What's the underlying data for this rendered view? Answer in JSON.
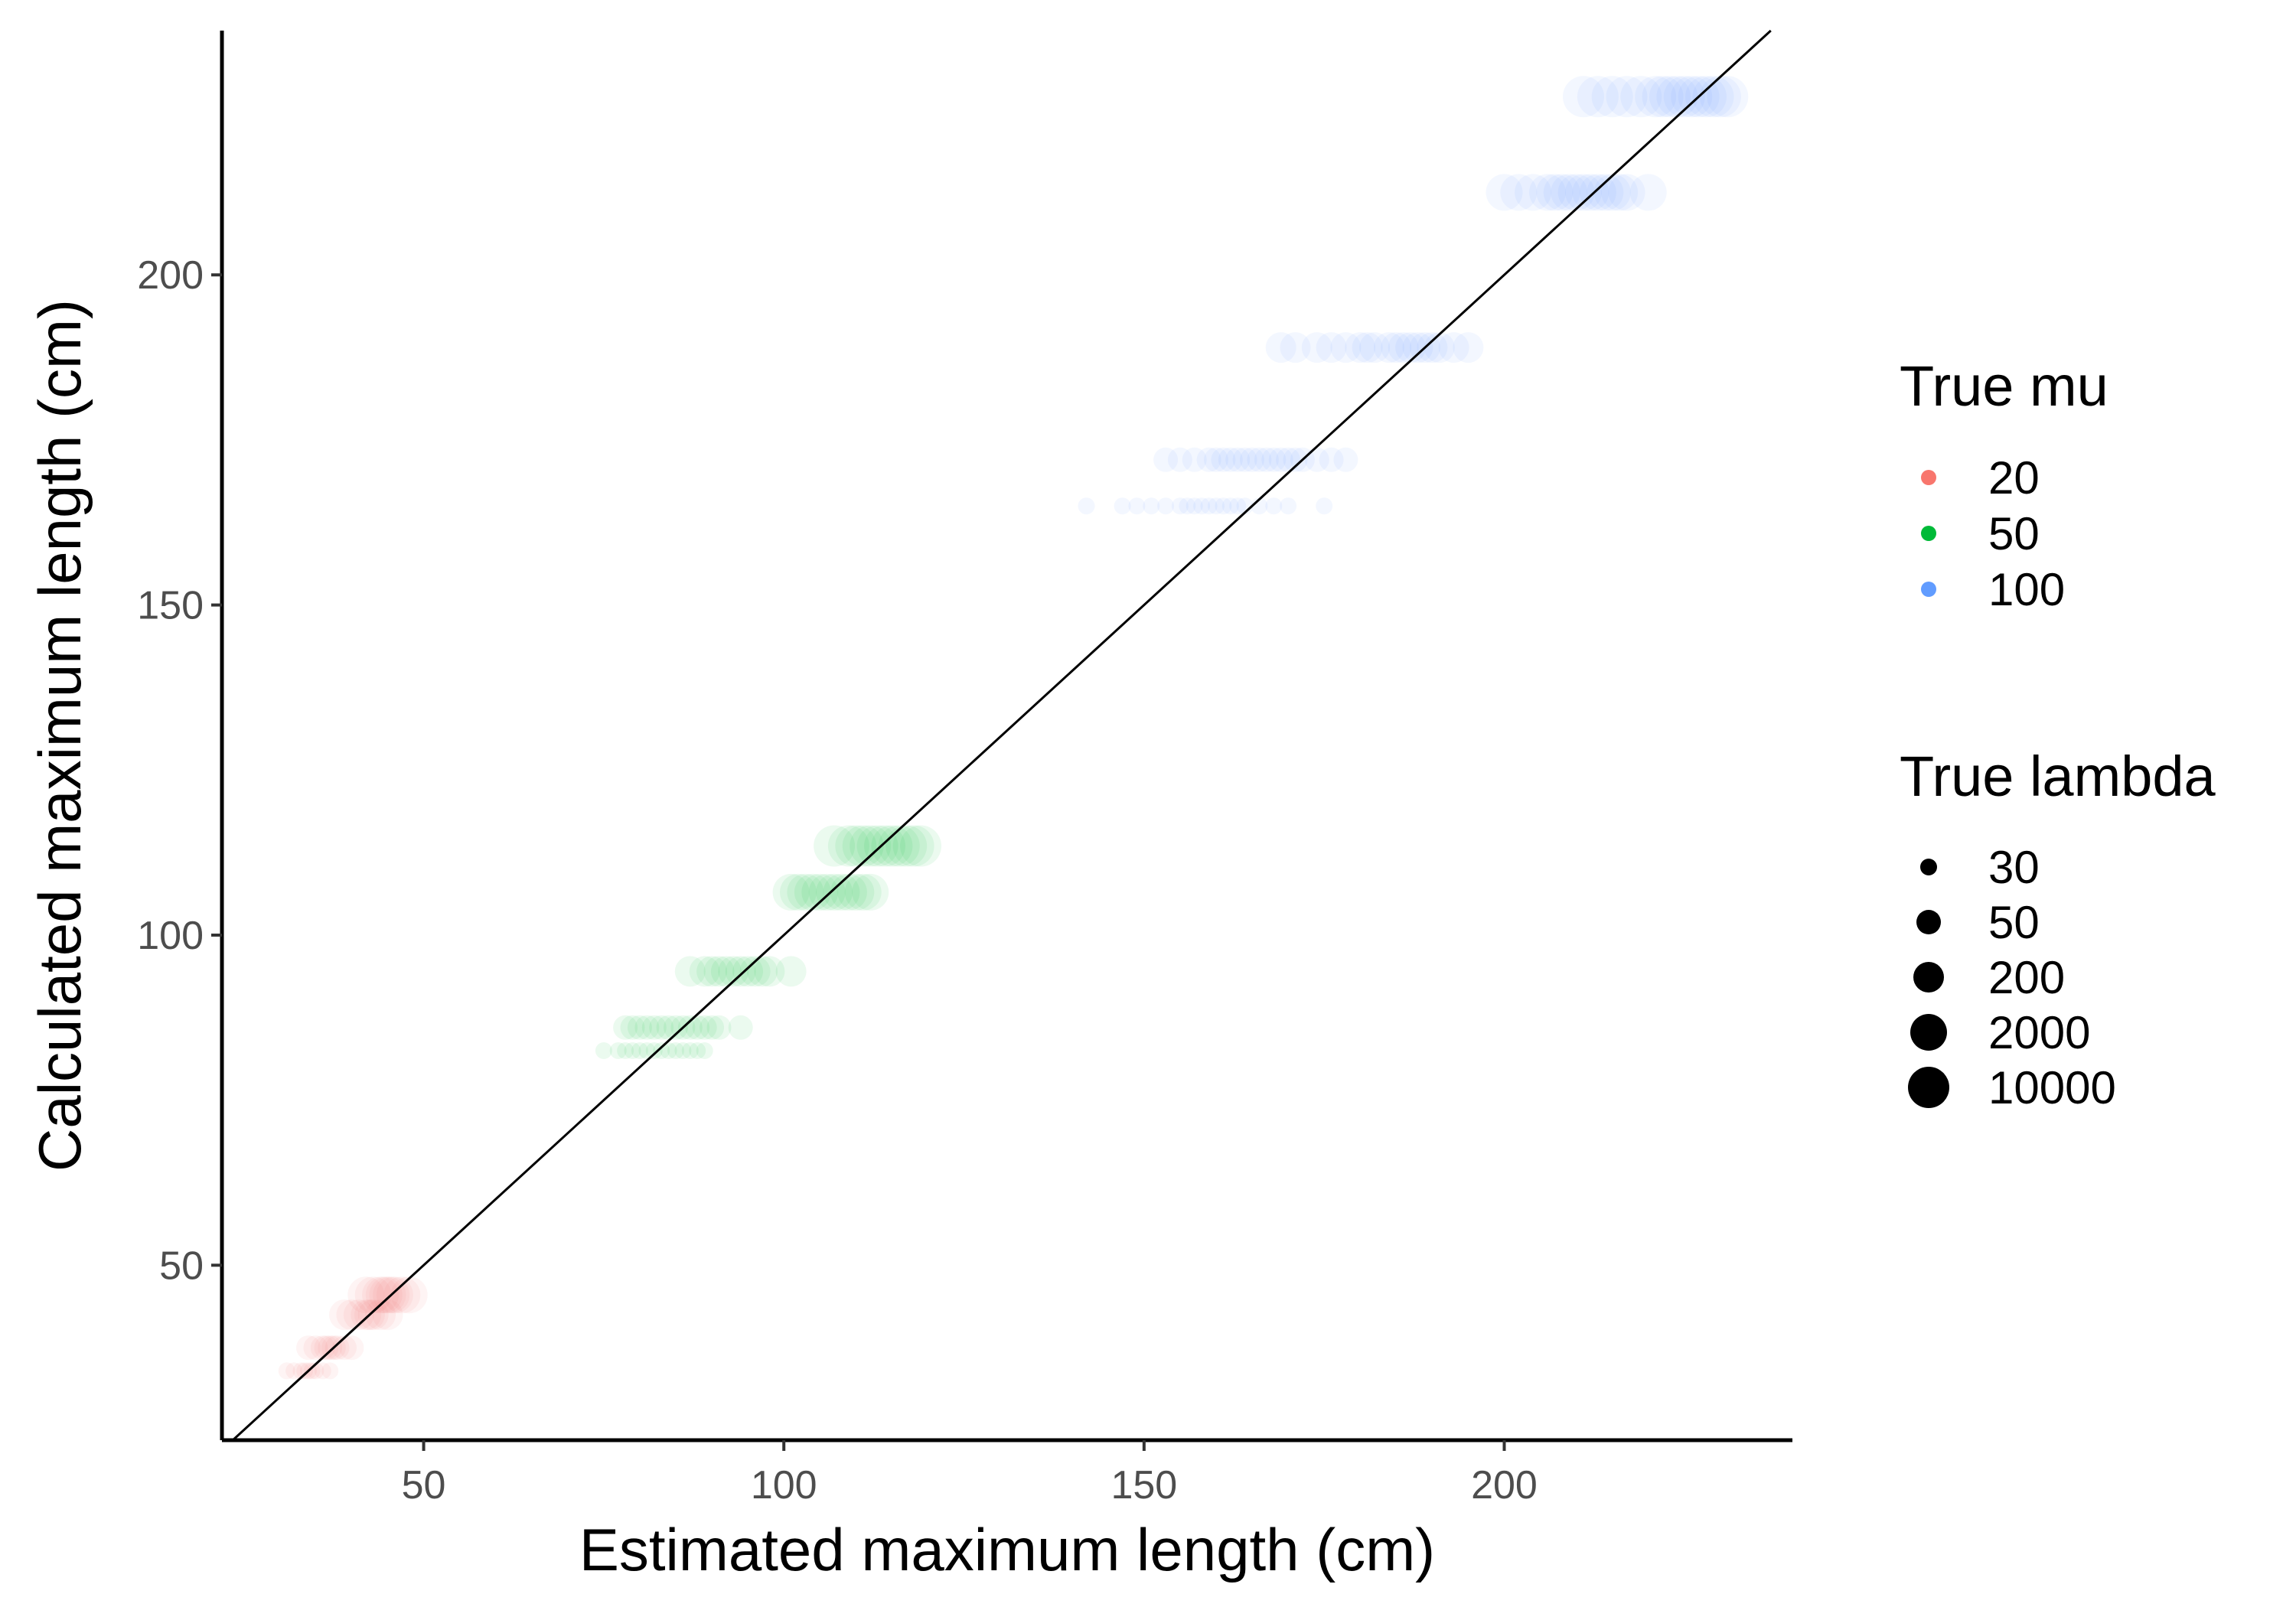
{
  "chart_data": {
    "type": "scatter",
    "title": "",
    "xlabel": "Estimated maximum length (cm)",
    "ylabel": "Calculated maximum length (cm)",
    "xlim": [
      22,
      240
    ],
    "ylim": [
      23.5,
      237
    ],
    "x_ticks": [
      50,
      100,
      150,
      200
    ],
    "y_ticks": [
      50,
      100,
      150,
      200
    ],
    "x_tick_labels": [
      "50",
      "100",
      "150",
      "200"
    ],
    "y_tick_labels": [
      "50",
      "100",
      "150",
      "200"
    ],
    "grid": false,
    "reference_line": {
      "type": "identity",
      "slope": 1,
      "intercept": 0,
      "color": "#000000"
    },
    "point_opacity": 0.08,
    "color_legend": {
      "title": "True mu",
      "position": "right",
      "entries": [
        {
          "label": "20",
          "color": "#F8766D"
        },
        {
          "label": "50",
          "color": "#00BA38"
        },
        {
          "label": "100",
          "color": "#619CFF"
        }
      ]
    },
    "size_legend": {
      "title": "True lambda",
      "position": "right",
      "entries": [
        {
          "label": "30",
          "size": 1
        },
        {
          "label": "50",
          "size": 2
        },
        {
          "label": "200",
          "size": 3
        },
        {
          "label": "2000",
          "size": 4
        },
        {
          "label": "10000",
          "size": 5
        }
      ]
    },
    "series": [
      {
        "mu": "20",
        "color": "#F8766D",
        "rows": [
          {
            "y": 34,
            "lambda": "30",
            "x": [
              31,
              32,
              33,
              33.5,
              34,
              34.5,
              35,
              36,
              37
            ]
          },
          {
            "y": 37.5,
            "lambda": "50",
            "x": [
              34,
              35,
              36,
              36.5,
              37,
              37.5,
              38,
              39,
              40
            ]
          },
          {
            "y": 42.5,
            "lambda": "200",
            "x": [
              39,
              40,
              41,
              42,
              42.5,
              43,
              44,
              45
            ]
          },
          {
            "y": 45.5,
            "lambda": "2000",
            "x": [
              42,
              43,
              44,
              44.5,
              45,
              45.5,
              46,
              47,
              48
            ]
          }
        ]
      },
      {
        "mu": "50",
        "color": "#00BA38",
        "rows": [
          {
            "y": 82.5,
            "lambda": "30",
            "x": [
              75,
              77,
              78,
              79,
              80,
              81,
              82,
              83,
              84,
              85,
              86,
              87,
              88,
              89
            ]
          },
          {
            "y": 86,
            "lambda": "50",
            "x": [
              78,
              79,
              80,
              81,
              82,
              83,
              84,
              85,
              86,
              87,
              88,
              89,
              90,
              91,
              94
            ]
          },
          {
            "y": 94.5,
            "lambda": "200",
            "x": [
              87,
              89,
              90,
              91,
              92,
              93,
              94,
              95,
              96,
              97,
              98,
              101
            ]
          },
          {
            "y": 106.5,
            "lambda": "2000",
            "x": [
              101,
              102,
              103,
              104,
              105,
              106,
              107,
              108,
              109,
              110,
              111,
              112
            ]
          },
          {
            "y": 113.5,
            "lambda": "10000",
            "x": [
              107,
              109,
              110,
              111,
              112,
              113,
              114,
              115,
              116,
              117,
              118,
              119
            ]
          }
        ]
      },
      {
        "mu": "100",
        "color": "#619CFF",
        "rows": [
          {
            "y": 165,
            "lambda": "30",
            "x": [
              142,
              147,
              149,
              151,
              153,
              155,
              156,
              157,
              158,
              159,
              160,
              161,
              162,
              163,
              164,
              166,
              168,
              170,
              175
            ]
          },
          {
            "y": 172,
            "lambda": "50",
            "x": [
              153,
              155,
              157,
              159,
              160,
              161,
              162,
              163,
              164,
              165,
              166,
              167,
              168,
              169,
              170,
              171,
              172,
              174,
              176,
              178
            ]
          },
          {
            "y": 189,
            "lambda": "200",
            "x": [
              169,
              171,
              174,
              176,
              178,
              180,
              181,
              182,
              184,
              185,
              186,
              187,
              188,
              189,
              190,
              191,
              193,
              195
            ]
          },
          {
            "y": 212.5,
            "lambda": "2000",
            "x": [
              200,
              202,
              204,
              206,
              207,
              208,
              209,
              210,
              211,
              212,
              213,
              214,
              215,
              216,
              217,
              220
            ]
          },
          {
            "y": 227,
            "lambda": "10000",
            "x": [
              211,
              213,
              215,
              217,
              219,
              221,
              222,
              223,
              224,
              225,
              226,
              227,
              228,
              229,
              230,
              231
            ]
          }
        ]
      }
    ]
  }
}
